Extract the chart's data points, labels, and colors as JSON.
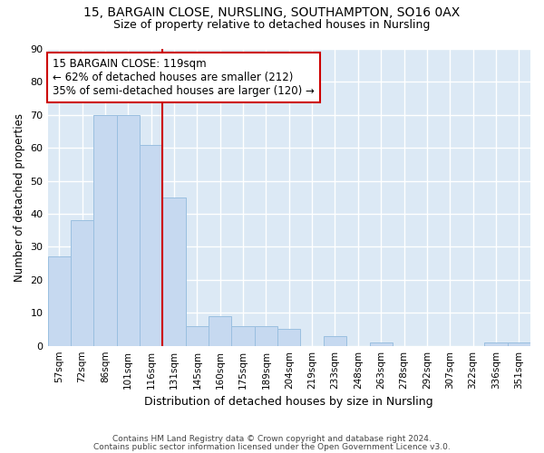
{
  "title1": "15, BARGAIN CLOSE, NURSLING, SOUTHAMPTON, SO16 0AX",
  "title2": "Size of property relative to detached houses in Nursling",
  "xlabel": "Distribution of detached houses by size in Nursling",
  "ylabel": "Number of detached properties",
  "categories": [
    "57sqm",
    "72sqm",
    "86sqm",
    "101sqm",
    "116sqm",
    "131sqm",
    "145sqm",
    "160sqm",
    "175sqm",
    "189sqm",
    "204sqm",
    "219sqm",
    "233sqm",
    "248sqm",
    "263sqm",
    "278sqm",
    "292sqm",
    "307sqm",
    "322sqm",
    "336sqm",
    "351sqm"
  ],
  "values": [
    27,
    38,
    70,
    70,
    61,
    45,
    6,
    9,
    6,
    6,
    5,
    0,
    3,
    0,
    1,
    0,
    0,
    0,
    0,
    1,
    1
  ],
  "bar_color": "#c6d9f0",
  "bar_edge_color": "#9abfe0",
  "vline_x_index": 4,
  "vline_color": "#cc0000",
  "annotation_line1": "15 BARGAIN CLOSE: 119sqm",
  "annotation_line2": "← 62% of detached houses are smaller (212)",
  "annotation_line3": "35% of semi-detached houses are larger (120) →",
  "annotation_box_color": "#ffffff",
  "annotation_box_edge_color": "#cc0000",
  "ylim": [
    0,
    90
  ],
  "yticks": [
    0,
    10,
    20,
    30,
    40,
    50,
    60,
    70,
    80,
    90
  ],
  "bg_color": "#dce9f5",
  "grid_color": "#ffffff",
  "fig_bg_color": "#ffffff",
  "footer1": "Contains HM Land Registry data © Crown copyright and database right 2024.",
  "footer2": "Contains public sector information licensed under the Open Government Licence v3.0."
}
